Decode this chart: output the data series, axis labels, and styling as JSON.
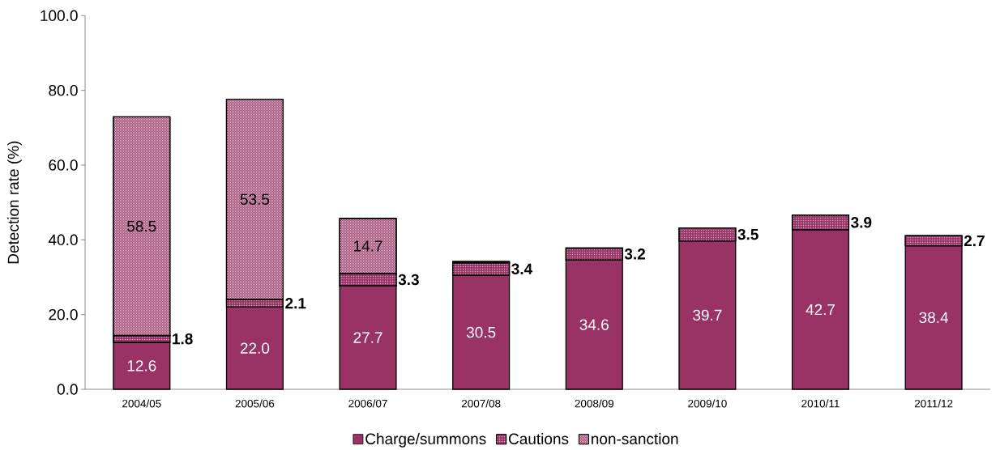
{
  "chart_data": {
    "type": "bar",
    "stacked": true,
    "ylabel": "Detection rate (%)",
    "categories": [
      "2004/05",
      "2005/06",
      "2006/07",
      "2007/08",
      "2008/09",
      "2009/10",
      "2010/11",
      "2011/12"
    ],
    "series": [
      {
        "name": "Charge/summons",
        "color": "#993366",
        "values": [
          12.6,
          22.0,
          27.7,
          30.5,
          34.6,
          39.7,
          42.7,
          38.4
        ],
        "value_labels": [
          "12.6",
          "22.0",
          "27.7",
          "30.5",
          "34.6",
          "39.7",
          "42.7",
          "38.4"
        ]
      },
      {
        "name": "Cautions",
        "color": "#993366",
        "values": [
          1.8,
          2.1,
          3.3,
          3.4,
          3.2,
          3.5,
          3.9,
          2.7
        ],
        "value_labels": [
          "1.8",
          "2.1",
          "3.3",
          "3.4",
          "3.2",
          "3.5",
          "3.9",
          "2.7"
        ]
      },
      {
        "name": "non-sanction",
        "color": "#993366",
        "values": [
          58.5,
          53.5,
          14.7,
          0.3,
          null,
          null,
          null,
          null
        ],
        "value_labels": [
          "58.5",
          "53.5",
          "14.7",
          null,
          null,
          null,
          null,
          null
        ]
      }
    ],
    "ylim": [
      0,
      100
    ],
    "yticks": [
      {
        "value": 0,
        "label": "0.0"
      },
      {
        "value": 20,
        "label": "20.0"
      },
      {
        "value": 40,
        "label": "40.0"
      },
      {
        "value": 60,
        "label": "60.0"
      },
      {
        "value": 80,
        "label": "80.0"
      },
      {
        "value": 100,
        "label": "100.0"
      }
    ],
    "legend": "bottom"
  }
}
